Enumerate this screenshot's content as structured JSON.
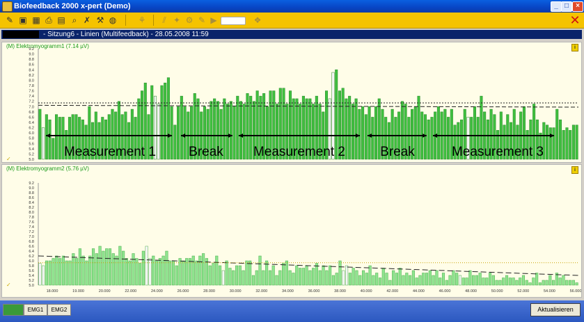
{
  "window": {
    "title": "Biofeedback 2000 x-pert (Demo)"
  },
  "toolbar": {
    "icons": [
      "tool-icon",
      "save-icon",
      "calendar-icon",
      "print-icon",
      "search-icon",
      "disconnect-icon",
      "wrench-icon",
      "globe-icon",
      "run-icon",
      "rewind-icon",
      "prev-icon",
      "next-icon",
      "play-icon",
      "settings-icon"
    ]
  },
  "session": {
    "text": "-  Sitzung6  -  Linien (Multifeedback)  -  28.05.2008  11:59"
  },
  "panel1": {
    "title": "(M) Elektromyogramm1  (7.14 µV)",
    "ytick_labels": [
      "9.2",
      "9.0",
      "8.8",
      "8.6",
      "8.4",
      "8.2",
      "8.0",
      "7.8",
      "7.6",
      "7.4",
      "7.2",
      "7.0",
      "6.8",
      "6.6",
      "6.4",
      "6.2",
      "6.0",
      "5.8",
      "5.6",
      "5.4",
      "5.2",
      "5.0"
    ],
    "annotations": [
      "Measurement 1",
      "Break",
      "Measurement 2",
      "Break",
      "Measurement 3"
    ]
  },
  "panel2": {
    "title": "(M) Elektromyogramm2  (5.76 µV)",
    "ytick_labels": [
      "9.2",
      "9.0",
      "8.8",
      "8.6",
      "8.4",
      "8.2",
      "8.0",
      "7.8",
      "7.6",
      "7.4",
      "7.2",
      "7.0",
      "6.8",
      "6.6",
      "6.4",
      "6.2",
      "6.0",
      "5.8",
      "5.6",
      "5.4",
      "5.2",
      "5.0"
    ],
    "xtick_labels": [
      "18.000",
      "19.000",
      "20.000",
      "22.000",
      "24.000",
      "26.000",
      "28.000",
      "30.000",
      "32.000",
      "34.000",
      "36.000",
      "38.000",
      "40.000",
      "42.000",
      "44.000",
      "46.000",
      "48.000",
      "50.000",
      "52.000",
      "54.000",
      "56.000"
    ]
  },
  "chart_data": [
    {
      "type": "bar",
      "title": "(M) Elektromyogramm1  (7.14 µV)",
      "ylim": [
        5.0,
        9.2
      ],
      "grid": false,
      "values": [
        6.9,
        6.2,
        6.7,
        6.5,
        5.8,
        6.7,
        6.6,
        6.6,
        6.1,
        6.6,
        6.7,
        6.7,
        6.6,
        6.5,
        6.3,
        7.0,
        6.4,
        6.8,
        6.4,
        6.6,
        6.5,
        6.7,
        6.9,
        6.8,
        7.2,
        6.7,
        6.8,
        6.4,
        6.9,
        6.6,
        7.3,
        7.6,
        7.9,
        6.7,
        7.8,
        7.4,
        7.1,
        7.8,
        7.9,
        8.1,
        7.0,
        6.3,
        7.0,
        7.4,
        7.0,
        6.8,
        7.0,
        7.5,
        7.3,
        6.8,
        7.0,
        6.9,
        7.2,
        7.3,
        7.2,
        6.9,
        7.3,
        7.1,
        7.2,
        7.0,
        7.4,
        7.2,
        7.1,
        7.5,
        7.4,
        7.2,
        7.6,
        7.4,
        7.5,
        7.0,
        7.6,
        7.6,
        7.1,
        7.7,
        7.7,
        7.1,
        7.6,
        7.3,
        7.3,
        7.1,
        7.4,
        7.3,
        7.3,
        7.1,
        7.4,
        7.1,
        6.8,
        7.6,
        7.3,
        8.3,
        8.4,
        7.6,
        7.7,
        7.3,
        7.4,
        7.1,
        7.3,
        6.9,
        7.0,
        6.7,
        7.0,
        6.6,
        7.0,
        7.3,
        6.9,
        6.6,
        6.4,
        6.9,
        6.6,
        6.8,
        7.2,
        7.1,
        6.6,
        6.9,
        7.0,
        7.4,
        6.8,
        6.7,
        6.5,
        6.6,
        6.8,
        7.0,
        6.8,
        6.9,
        6.6,
        6.9,
        6.3,
        6.4,
        6.5,
        6.9,
        6.6,
        6.6,
        7.0,
        6.6,
        7.4,
        6.8,
        6.5,
        6.9,
        6.7,
        6.1,
        6.8,
        6.3,
        6.7,
        6.4,
        6.9,
        6.3,
        6.8,
        7.0,
        6.1,
        6.5,
        7.1,
        6.5,
        6.0,
        6.4,
        6.3,
        6.2,
        6.2,
        6.9,
        6.5,
        6.1,
        6.2,
        6.1,
        6.3,
        6.3
      ],
      "annotations": [
        "Measurement 1",
        "Break",
        "Measurement 2",
        "Break",
        "Measurement 3"
      ]
    },
    {
      "type": "bar",
      "title": "(M) Elektromyogramm2  (5.76 µV)",
      "ylim": [
        5.0,
        9.2
      ],
      "grid": false,
      "x_ticks": [
        "18.000",
        "19.000",
        "20.000",
        "22.000",
        "24.000",
        "26.000",
        "28.000",
        "30.000",
        "32.000",
        "34.000",
        "36.000",
        "38.000",
        "40.000",
        "42.000",
        "44.000",
        "46.000",
        "48.000",
        "50.000",
        "52.000",
        "54.000",
        "56.000"
      ],
      "values": [
        5.9,
        5.8,
        6.0,
        6.0,
        6.1,
        6.2,
        6.1,
        6.2,
        6.0,
        6.0,
        6.3,
        6.1,
        6.5,
        6.2,
        6.0,
        6.2,
        6.5,
        6.3,
        6.6,
        6.4,
        6.5,
        6.5,
        6.3,
        6.2,
        6.6,
        6.4,
        6.1,
        6.0,
        6.3,
        6.1,
        5.9,
        6.4,
        6.6,
        6.1,
        6.2,
        6.0,
        6.1,
        6.2,
        6.4,
        6.0,
        6.0,
        5.8,
        6.1,
        6.0,
        6.1,
        6.1,
        6.2,
        6.0,
        6.2,
        6.3,
        6.1,
        5.8,
        5.9,
        6.2,
        5.8,
        5.6,
        6.0,
        5.7,
        5.6,
        5.8,
        5.8,
        5.6,
        6.0,
        6.0,
        5.4,
        5.6,
        6.2,
        5.6,
        6.0,
        5.6,
        5.8,
        5.4,
        5.6,
        5.9,
        6.0,
        5.6,
        5.5,
        5.8,
        5.7,
        5.7,
        5.8,
        5.6,
        5.7,
        5.9,
        5.6,
        5.8,
        5.6,
        5.8,
        5.4,
        5.5,
        6.0,
        5.6,
        5.8,
        5.5,
        5.7,
        5.6,
        5.4,
        5.6,
        5.5,
        5.8,
        5.4,
        5.5,
        5.3,
        5.7,
        5.5,
        5.2,
        5.6,
        5.5,
        5.7,
        5.4,
        5.5,
        5.4,
        5.6,
        5.3,
        5.4,
        5.5,
        5.5,
        5.6,
        5.4,
        5.6,
        5.3,
        5.5,
        5.2,
        5.4,
        5.6,
        5.5,
        5.4,
        5.3,
        5.3,
        5.6,
        5.4,
        5.4,
        5.5,
        5.3,
        5.3,
        5.5,
        5.4,
        5.2,
        5.2,
        5.3,
        5.4,
        5.3,
        5.3,
        5.2,
        5.3,
        5.4,
        5.2,
        5.1,
        5.3,
        5.5,
        5.1,
        5.2,
        5.2,
        5.4,
        5.2,
        5.5,
        5.3,
        5.4,
        5.2,
        5.2,
        5.2,
        5.1
      ],
      "light_bars_note": ""
    }
  ],
  "statusbar": {
    "tabs": [
      "",
      "EMG1",
      "EMG2"
    ],
    "refresh_label": "Aktualisieren"
  }
}
